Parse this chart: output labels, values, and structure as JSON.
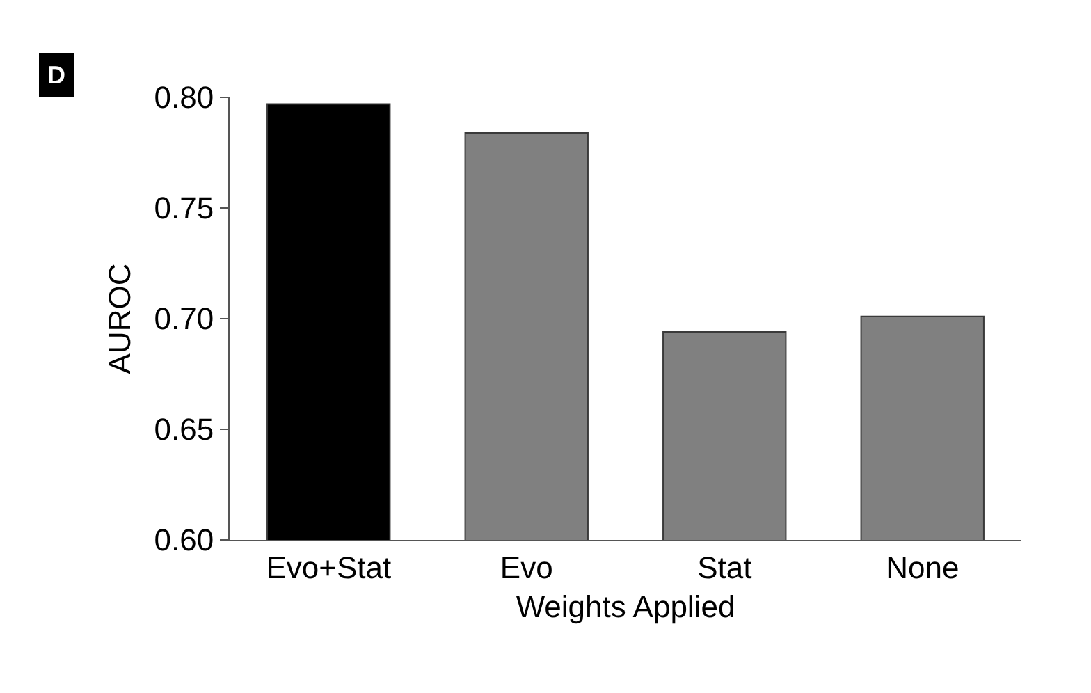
{
  "chart_data": {
    "type": "bar",
    "xlabel": "Weights Applied",
    "ylabel": "AUROC",
    "categories": [
      "Evo+Stat",
      "Evo",
      "Stat",
      "None"
    ],
    "values": [
      0.797,
      0.784,
      0.694,
      0.701
    ],
    "colors": [
      "#000000",
      "#808080",
      "#808080",
      "#808080"
    ],
    "ylim": [
      0.6,
      0.8
    ],
    "yticks": [
      {
        "value": 0.6,
        "label": "0.60"
      },
      0.65,
      {
        "value": 0.7,
        "label": "0.70"
      },
      0.75,
      {
        "value": 0.8,
        "label": "0.80"
      }
    ],
    "annotations": [
      "D"
    ]
  }
}
